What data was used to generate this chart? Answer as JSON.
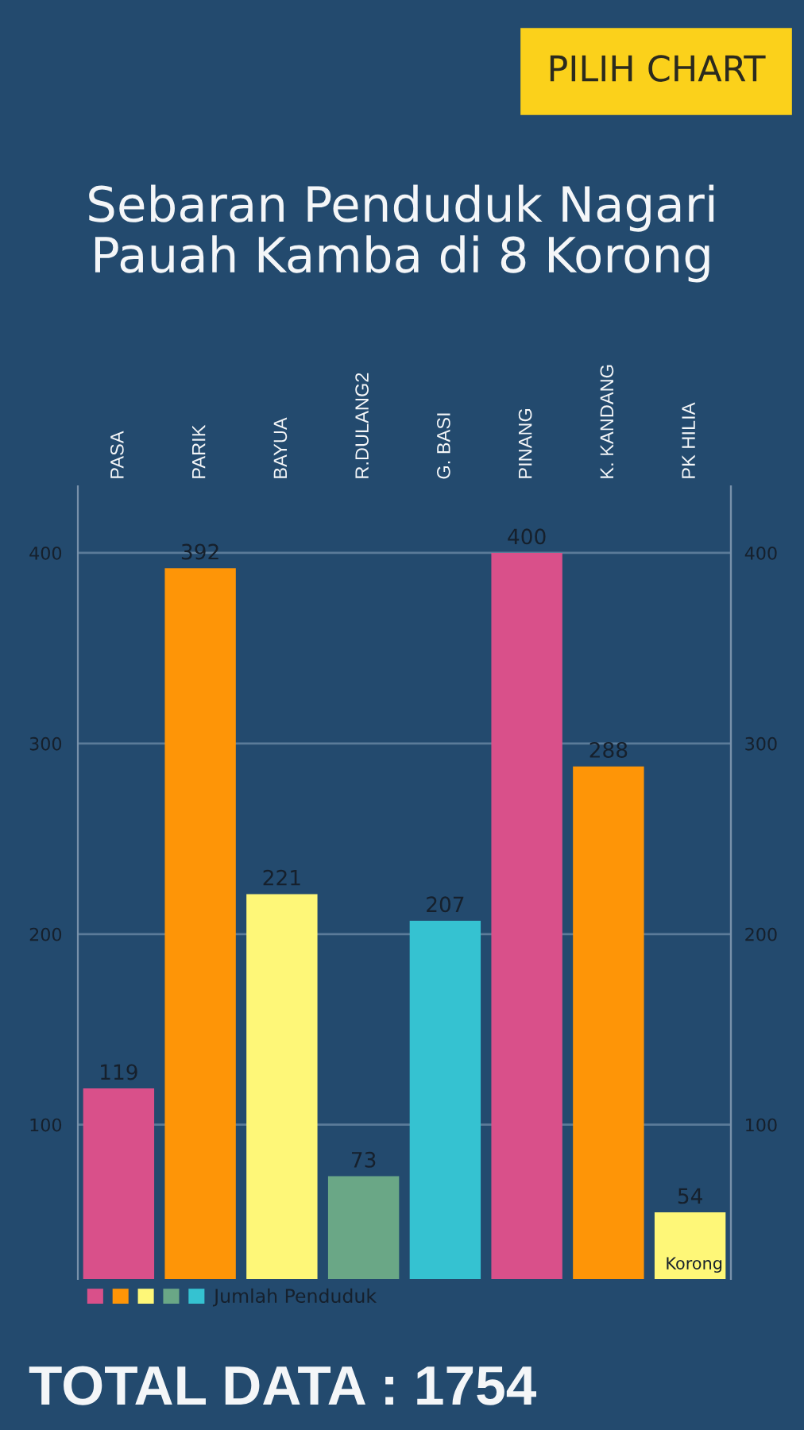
{
  "chart_data": {
    "type": "bar",
    "title": "Sebaran Penduduk Nagari\nPauah Kamba di 8 Korong",
    "categories": [
      "PASA",
      "PARIK",
      "BAYUA",
      "R.DULANG2",
      "G. BASI",
      "PINANG",
      "K. KANDANG",
      "PK HILIA"
    ],
    "series": [
      {
        "name": "Jumlah Penduduk",
        "colors": [
          "#d9508a",
          "#fe9507",
          "#fef778",
          "#6aa786",
          "#35c2d1",
          "#d9508a",
          "#fe9507",
          "#fef778"
        ],
        "values": [
          119,
          392,
          221,
          73,
          207,
          400,
          288,
          54
        ]
      }
    ],
    "ylim": [
      19,
      435
    ],
    "yticks": [
      100,
      200,
      300,
      400
    ],
    "y2lim": [
      19,
      435
    ],
    "y2ticks": [
      100,
      200,
      300,
      400
    ],
    "grid": "y",
    "legend": "bottom left",
    "data_labels": true,
    "annotations": [
      "Korong",
      "PILIH CHART",
      "TOTAL DATA : 1754"
    ]
  }
}
